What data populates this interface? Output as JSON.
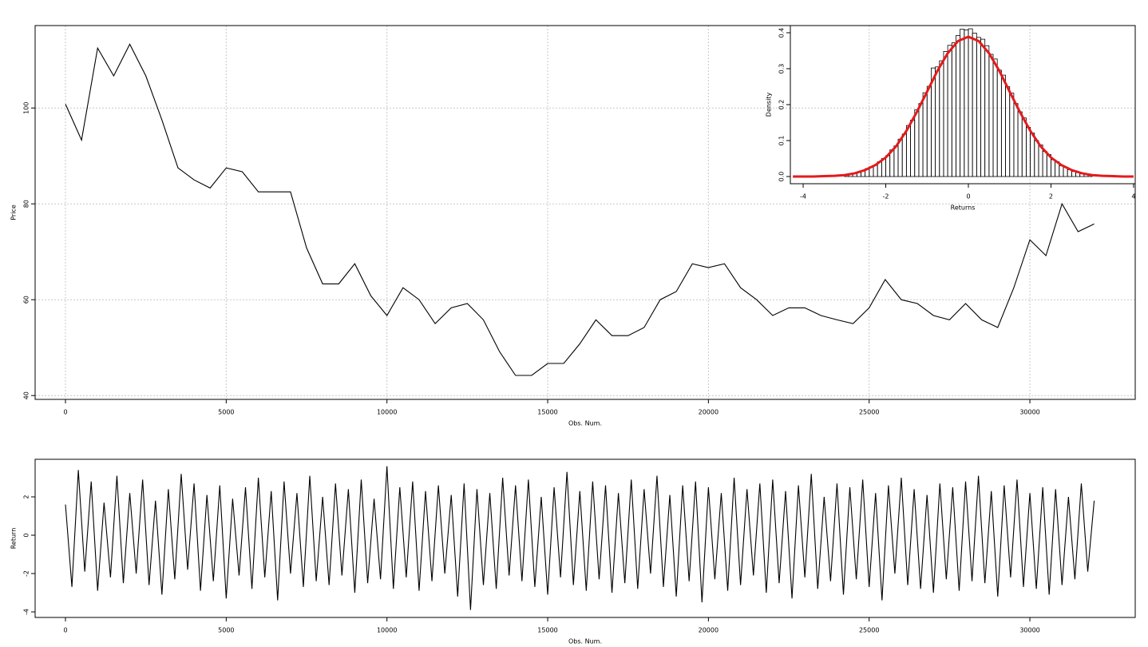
{
  "chart_data": [
    {
      "type": "line",
      "xlabel": "Obs. Num.",
      "ylabel": "Price",
      "color": "#000000",
      "grid": true,
      "xlim": [
        -944,
        33277
      ],
      "ylim": [
        39.2,
        117.2
      ],
      "xticks": [
        0,
        5000,
        10000,
        15000,
        20000,
        25000,
        30000
      ],
      "yticks": [
        40,
        60,
        80,
        100
      ],
      "x": [
        0,
        500,
        1000,
        1500,
        2000,
        2500,
        3000,
        3500,
        4000,
        4500,
        5000,
        5500,
        6000,
        6500,
        7000,
        7500,
        8000,
        8500,
        9000,
        9500,
        10000,
        10500,
        11000,
        11500,
        12000,
        12500,
        13000,
        13500,
        14000,
        14500,
        15000,
        15500,
        16000,
        16500,
        17000,
        17500,
        18000,
        18500,
        19000,
        19500,
        20000,
        20500,
        21000,
        21500,
        22000,
        22500,
        23000,
        23500,
        24000,
        24500,
        25000,
        25500,
        26000,
        26500,
        27000,
        27500,
        28000,
        28500,
        29000,
        29500,
        30000,
        30500,
        31000,
        31500,
        32000
      ],
      "values": [
        100.8,
        93.3,
        112.5,
        106.7,
        113.3,
        106.7,
        97.5,
        87.5,
        85,
        83.3,
        87.5,
        86.7,
        82.5,
        82.5,
        82.5,
        70.8,
        63.3,
        63.3,
        67.5,
        60.8,
        56.7,
        62.5,
        60,
        55,
        58.3,
        59.2,
        55.8,
        49.2,
        44.2,
        44.2,
        46.7,
        46.7,
        50.8,
        55.8,
        52.5,
        52.5,
        54.2,
        60,
        61.7,
        67.5,
        66.7,
        67.5,
        62.5,
        60,
        56.7,
        58.3,
        58.3,
        56.7,
        55.8,
        55,
        58.3,
        64.2,
        60,
        59.2,
        56.7,
        55.8,
        59.2,
        55.8,
        54.2,
        62.5,
        72.5,
        69.2,
        80,
        74.2,
        75.8
      ]
    },
    {
      "type": "histogram",
      "xlabel": "Returns",
      "ylabel": "Density",
      "color": "#000000",
      "grid": false,
      "xlim": [
        -4.31,
        4.04
      ],
      "ylim": [
        -0.02,
        0.42
      ],
      "xticks": [
        -4,
        -2,
        0,
        2,
        4
      ],
      "yticks": [
        {
          "value": 0,
          "label": "0.0"
        },
        0.1,
        0.2,
        0.3,
        0.4
      ],
      "bins": [
        -3.0,
        -2.9,
        -2.8,
        -2.7,
        -2.6,
        -2.5,
        -2.4,
        -2.3,
        -2.2,
        -2.1,
        -2.0,
        -1.9,
        -1.8,
        -1.7,
        -1.6,
        -1.5,
        -1.4,
        -1.3,
        -1.2,
        -1.1,
        -1.0,
        -0.9,
        -0.8,
        -0.7,
        -0.6,
        -0.5,
        -0.4,
        -0.3,
        -0.2,
        -0.1,
        0,
        0.1,
        0.2,
        0.3,
        0.4,
        0.5,
        0.6,
        0.7,
        0.8,
        0.9,
        1.0,
        1.1,
        1.2,
        1.3,
        1.4,
        1.5,
        1.6,
        1.7,
        1.8,
        1.9,
        2.0,
        2.1,
        2.2,
        2.3,
        2.4,
        2.5,
        2.6,
        2.7,
        2.8,
        2.9,
        3.0
      ],
      "values": [
        0.004,
        0.006,
        0.01,
        0.011,
        0.016,
        0.022,
        0.027,
        0.031,
        0.041,
        0.05,
        0.058,
        0.074,
        0.085,
        0.104,
        0.118,
        0.142,
        0.157,
        0.186,
        0.203,
        0.233,
        0.251,
        0.302,
        0.305,
        0.322,
        0.348,
        0.365,
        0.372,
        0.392,
        0.41,
        0.408,
        0.411,
        0.399,
        0.387,
        0.382,
        0.364,
        0.34,
        0.327,
        0.296,
        0.282,
        0.25,
        0.232,
        0.203,
        0.18,
        0.163,
        0.137,
        0.121,
        0.1,
        0.088,
        0.07,
        0.061,
        0.047,
        0.041,
        0.03,
        0.026,
        0.019,
        0.014,
        0.011,
        0.008,
        0.006,
        0.004
      ],
      "density": {
        "color": "#e41a1c",
        "x": [
          -4.25,
          -4,
          -3.75,
          -3.5,
          -3.25,
          -3,
          -2.75,
          -2.5,
          -2.25,
          -2,
          -1.75,
          -1.5,
          -1.25,
          -1,
          -0.75,
          -0.5,
          -0.25,
          0,
          0.25,
          0.5,
          0.75,
          1,
          1.25,
          1.5,
          1.75,
          2,
          2.25,
          2.5,
          2.75,
          3,
          3.25,
          3.5,
          3.75,
          4
        ],
        "values": [
          0,
          0,
          0,
          0.001,
          0.002,
          0.004,
          0.009,
          0.018,
          0.032,
          0.053,
          0.084,
          0.127,
          0.179,
          0.236,
          0.294,
          0.343,
          0.377,
          0.389,
          0.377,
          0.343,
          0.294,
          0.236,
          0.179,
          0.127,
          0.084,
          0.053,
          0.032,
          0.018,
          0.009,
          0.004,
          0.002,
          0.001,
          0,
          0
        ]
      }
    },
    {
      "type": "line",
      "xlabel": "Obs. Num.",
      "ylabel": "Return",
      "color": "#000000",
      "grid": false,
      "xlim": [
        -944,
        33277
      ],
      "ylim": [
        -4.29,
        3.96
      ],
      "xticks": [
        0,
        5000,
        10000,
        15000,
        20000,
        25000,
        30000
      ],
      "yticks": [
        -4,
        -2,
        0,
        2
      ],
      "x": [
        0,
        200,
        400,
        600,
        800,
        1000,
        1200,
        1400,
        1600,
        1800,
        2000,
        2200,
        2400,
        2600,
        2800,
        3000,
        3200,
        3400,
        3600,
        3800,
        4000,
        4200,
        4400,
        4600,
        4800,
        5000,
        5200,
        5400,
        5600,
        5800,
        6000,
        6200,
        6400,
        6600,
        6800,
        7000,
        7200,
        7400,
        7600,
        7800,
        8000,
        8200,
        8400,
        8600,
        8800,
        9000,
        9200,
        9400,
        9600,
        9800,
        10000,
        10200,
        10400,
        10600,
        10800,
        11000,
        11200,
        11400,
        11600,
        11800,
        12000,
        12200,
        12400,
        12600,
        12800,
        13000,
        13200,
        13400,
        13600,
        13800,
        14000,
        14200,
        14400,
        14600,
        14800,
        15000,
        15200,
        15400,
        15600,
        15800,
        16000,
        16200,
        16400,
        16600,
        16800,
        17000,
        17200,
        17400,
        17600,
        17800,
        18000,
        18200,
        18400,
        18600,
        18800,
        19000,
        19200,
        19400,
        19600,
        19800,
        20000,
        20200,
        20400,
        20600,
        20800,
        21000,
        21200,
        21400,
        21600,
        21800,
        22000,
        22200,
        22400,
        22600,
        22800,
        23000,
        23200,
        23400,
        23600,
        23800,
        24000,
        24200,
        24400,
        24600,
        24800,
        25000,
        25200,
        25400,
        25600,
        25800,
        26000,
        26200,
        26400,
        26600,
        26800,
        27000,
        27200,
        27400,
        27600,
        27800,
        28000,
        28200,
        28400,
        28600,
        28800,
        29000,
        29200,
        29400,
        29600,
        29800,
        30000,
        30200,
        30400,
        30600,
        30800,
        31000,
        31200,
        31400,
        31600,
        31800,
        32000
      ],
      "values": [
        1.6,
        -2.7,
        3.4,
        -1.9,
        2.8,
        -2.9,
        1.7,
        -2.2,
        3.1,
        -2.5,
        2.2,
        -2.0,
        2.9,
        -2.6,
        1.8,
        -3.1,
        2.4,
        -2.3,
        3.2,
        -1.8,
        2.7,
        -2.9,
        2.1,
        -2.4,
        2.6,
        -3.3,
        1.9,
        -2.1,
        2.5,
        -2.8,
        3.0,
        -2.2,
        2.3,
        -3.4,
        2.8,
        -2.0,
        2.2,
        -2.7,
        3.1,
        -2.4,
        2.0,
        -2.6,
        2.7,
        -2.1,
        2.4,
        -3.0,
        2.9,
        -2.5,
        1.9,
        -2.3,
        3.6,
        -2.8,
        2.5,
        -2.2,
        2.8,
        -2.9,
        2.3,
        -2.4,
        2.6,
        -2.0,
        2.1,
        -3.2,
        2.7,
        -3.9,
        2.4,
        -2.6,
        2.2,
        -2.8,
        3.0,
        -2.1,
        2.6,
        -2.4,
        2.9,
        -2.7,
        2.0,
        -3.1,
        2.5,
        -2.2,
        3.3,
        -2.6,
        2.3,
        -2.9,
        2.8,
        -2.3,
        2.6,
        -3.0,
        2.2,
        -2.5,
        2.9,
        -2.8,
        2.4,
        -2.0,
        3.1,
        -2.7,
        2.1,
        -3.2,
        2.6,
        -2.4,
        2.8,
        -3.5,
        2.5,
        -2.3,
        2.2,
        -2.9,
        3.0,
        -2.6,
        2.4,
        -2.1,
        2.7,
        -3.0,
        2.9,
        -2.5,
        2.3,
        -3.3,
        2.6,
        -2.2,
        3.2,
        -2.8,
        2.0,
        -2.4,
        2.7,
        -3.1,
        2.5,
        -2.3,
        2.9,
        -2.7,
        2.2,
        -3.4,
        2.6,
        -2.0,
        3.0,
        -2.6,
        2.4,
        -2.8,
        2.1,
        -3.0,
        2.7,
        -2.3,
        2.5,
        -2.9,
        2.8,
        -2.4,
        3.1,
        -2.5,
        2.3,
        -3.2,
        2.6,
        -2.2,
        2.9,
        -2.7,
        2.2,
        -2.8,
        2.5,
        -3.1,
        2.4,
        -2.6,
        2.0,
        -2.3,
        2.7,
        -1.9,
        1.8
      ]
    }
  ]
}
